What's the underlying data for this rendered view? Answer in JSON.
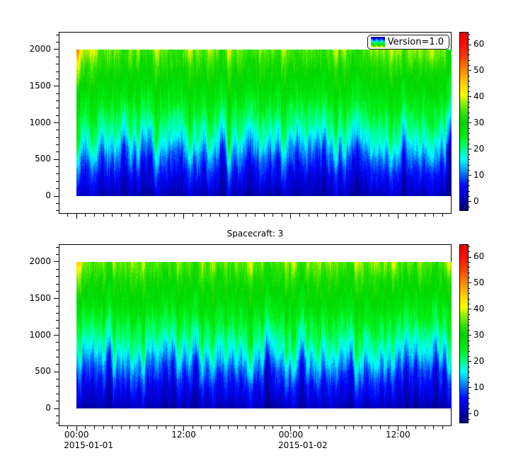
{
  "legend": {
    "label": "Version=1.0"
  },
  "panels": [
    {
      "title": ""
    },
    {
      "title": "Spacecraft: 3"
    }
  ],
  "colors": {
    "background": "#ffffff",
    "axis": "#000000",
    "text": "#000000",
    "colormap_stops": [
      [
        -3,
        "#000080"
      ],
      [
        2,
        "#0000cd"
      ],
      [
        6,
        "#0008ff"
      ],
      [
        10,
        "#0064ff"
      ],
      [
        13,
        "#00b4ff"
      ],
      [
        16,
        "#00ffff"
      ],
      [
        19,
        "#00ffaa"
      ],
      [
        22,
        "#00ff55"
      ],
      [
        25,
        "#00ee11"
      ],
      [
        30,
        "#00d400"
      ],
      [
        34,
        "#33e600"
      ],
      [
        38,
        "#99f200"
      ],
      [
        41,
        "#ffff00"
      ],
      [
        45,
        "#ffd200"
      ],
      [
        50,
        "#ff8c00"
      ],
      [
        55,
        "#ff4400"
      ],
      [
        60,
        "#ff0e00"
      ],
      [
        65,
        "#e60000"
      ]
    ]
  },
  "axes": {
    "y": {
      "range": [
        -241,
        2241
      ],
      "major_ticks": [
        0,
        500,
        1000,
        1500,
        2000
      ],
      "tick_labels": [
        "0",
        "500",
        "1000",
        "1500",
        "2000"
      ],
      "minor_step": 100
    },
    "x": {
      "range_hours": [
        -2,
        42
      ],
      "minor_step_hours": 1,
      "major_ticks": [
        {
          "hour": 0,
          "time": "00:00",
          "date": "2015-01-01"
        },
        {
          "hour": 12,
          "time": "12:00",
          "date": ""
        },
        {
          "hour": 24,
          "time": "00:00",
          "date": "2015-01-02"
        },
        {
          "hour": 36,
          "time": "12:00",
          "date": ""
        }
      ]
    },
    "colorbar": {
      "range": [
        -3.3,
        64.6
      ],
      "major_ticks": [
        0,
        10,
        20,
        30,
        40,
        50,
        60
      ],
      "tick_labels": [
        "0",
        "10",
        "20",
        "30",
        "40",
        "50",
        "60"
      ],
      "minor_step": 2
    }
  },
  "chart_data": [
    {
      "type": "heatmap",
      "panel": "top",
      "title": "",
      "legend_entries": [
        "Version=1.0"
      ],
      "x_start": "2015-01-01 00:00",
      "x_end": "2015-01-02 18:00",
      "x_tick_labels": [
        "00:00 2015-01-01",
        "12:00",
        "00:00 2015-01-02",
        "12:00"
      ],
      "y_range": [
        0,
        2000
      ],
      "y_tick_labels": [
        "0",
        "500",
        "1000",
        "1500",
        "2000"
      ],
      "z_range": [
        -3.3,
        64.6
      ],
      "colorbar_ticks": [
        0,
        10,
        20,
        30,
        40,
        50,
        60
      ],
      "profile": {
        "altitude": [
          0,
          100,
          200,
          300,
          400,
          500,
          600,
          700,
          800,
          900,
          1000,
          1200,
          1400,
          1600,
          1800,
          2000
        ],
        "mean_value": [
          0,
          2,
          3.5,
          5,
          7,
          9,
          11.5,
          14,
          16.5,
          18.5,
          20.5,
          24,
          27,
          29.5,
          32,
          34.5
        ]
      },
      "noise": {
        "seed": 12345,
        "column_amp": 2.5,
        "band_center": 650,
        "band_width": 400,
        "band_extra_amp": 5,
        "column_fine_amp": 1.5,
        "pixel_amp": 1.3,
        "wave_amp": 1.1
      },
      "features": {
        "left_top_boost": 10,
        "left_top_decay_cols": 10,
        "left_top_min_alt": 1400,
        "right_top_boost": 7,
        "right_top_start_frac": 0.84,
        "right_top_min_alt": 1600,
        "top_scatter_boost": 3.5,
        "top_scatter_min_alt": 1750
      }
    },
    {
      "type": "heatmap",
      "panel": "bottom",
      "title": "Spacecraft: 3",
      "legend_entries": [],
      "x_start": "2015-01-01 00:00",
      "x_end": "2015-01-02 18:00",
      "x_tick_labels": [
        "00:00 2015-01-01",
        "12:00",
        "00:00 2015-01-02",
        "12:00"
      ],
      "y_range": [
        0,
        2000
      ],
      "y_tick_labels": [
        "0",
        "500",
        "1000",
        "1500",
        "2000"
      ],
      "z_range": [
        -3.3,
        64.6
      ],
      "colorbar_ticks": [
        0,
        10,
        20,
        30,
        40,
        50,
        60
      ],
      "profile": {
        "altitude": [
          0,
          100,
          200,
          300,
          400,
          500,
          600,
          700,
          800,
          900,
          1000,
          1200,
          1400,
          1600,
          1800,
          2000
        ],
        "mean_value": [
          0,
          2,
          3.5,
          5,
          7,
          9,
          11.5,
          14,
          16.5,
          18.5,
          20.5,
          24,
          27,
          29.5,
          32,
          34.5
        ]
      },
      "noise": {
        "seed": 67890,
        "column_amp": 2.5,
        "band_center": 650,
        "band_width": 400,
        "band_extra_amp": 5,
        "column_fine_amp": 1.5,
        "pixel_amp": 1.3,
        "wave_amp": 1.1
      },
      "features": {
        "left_top_boost": 10,
        "left_top_decay_cols": 10,
        "left_top_min_alt": 1400,
        "right_top_boost": 8,
        "right_top_start_frac": 0.84,
        "right_top_min_alt": 1600,
        "top_scatter_boost": 3.5,
        "top_scatter_min_alt": 1750
      }
    }
  ]
}
